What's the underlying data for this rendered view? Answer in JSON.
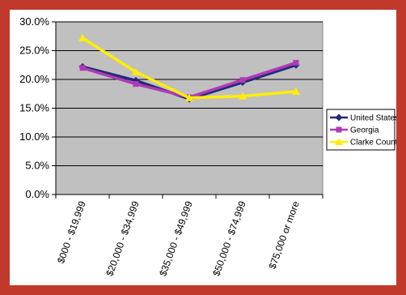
{
  "chart_data": {
    "type": "line",
    "categories": [
      "$000 - $19,999",
      "$20,000 - $34,999",
      "$35,000 - $49,999",
      "$50,000 - $74,999",
      "$75,000 or more"
    ],
    "series": [
      {
        "name": "United States",
        "values": [
          22.2,
          19.8,
          16.6,
          19.5,
          22.5
        ],
        "color": "#1f2a7a",
        "marker": "diamond"
      },
      {
        "name": "Georgia",
        "values": [
          22.0,
          19.2,
          16.9,
          19.9,
          22.9
        ],
        "color": "#b03ab5",
        "marker": "square"
      },
      {
        "name": "Clarke County",
        "values": [
          27.2,
          21.3,
          16.8,
          17.1,
          17.9
        ],
        "color": "#ffee00",
        "marker": "triangle"
      }
    ],
    "ylim": [
      0,
      30
    ],
    "yticks": [
      "0.0%",
      "5.0%",
      "10.0%",
      "15.0%",
      "20.0%",
      "25.0%",
      "30.0%"
    ],
    "ytick_values": [
      0,
      5,
      10,
      15,
      20,
      25,
      30
    ],
    "grid": true,
    "legend": "right",
    "plot_background": "#c0c0c0",
    "title": "",
    "xlabel": "",
    "ylabel": ""
  }
}
